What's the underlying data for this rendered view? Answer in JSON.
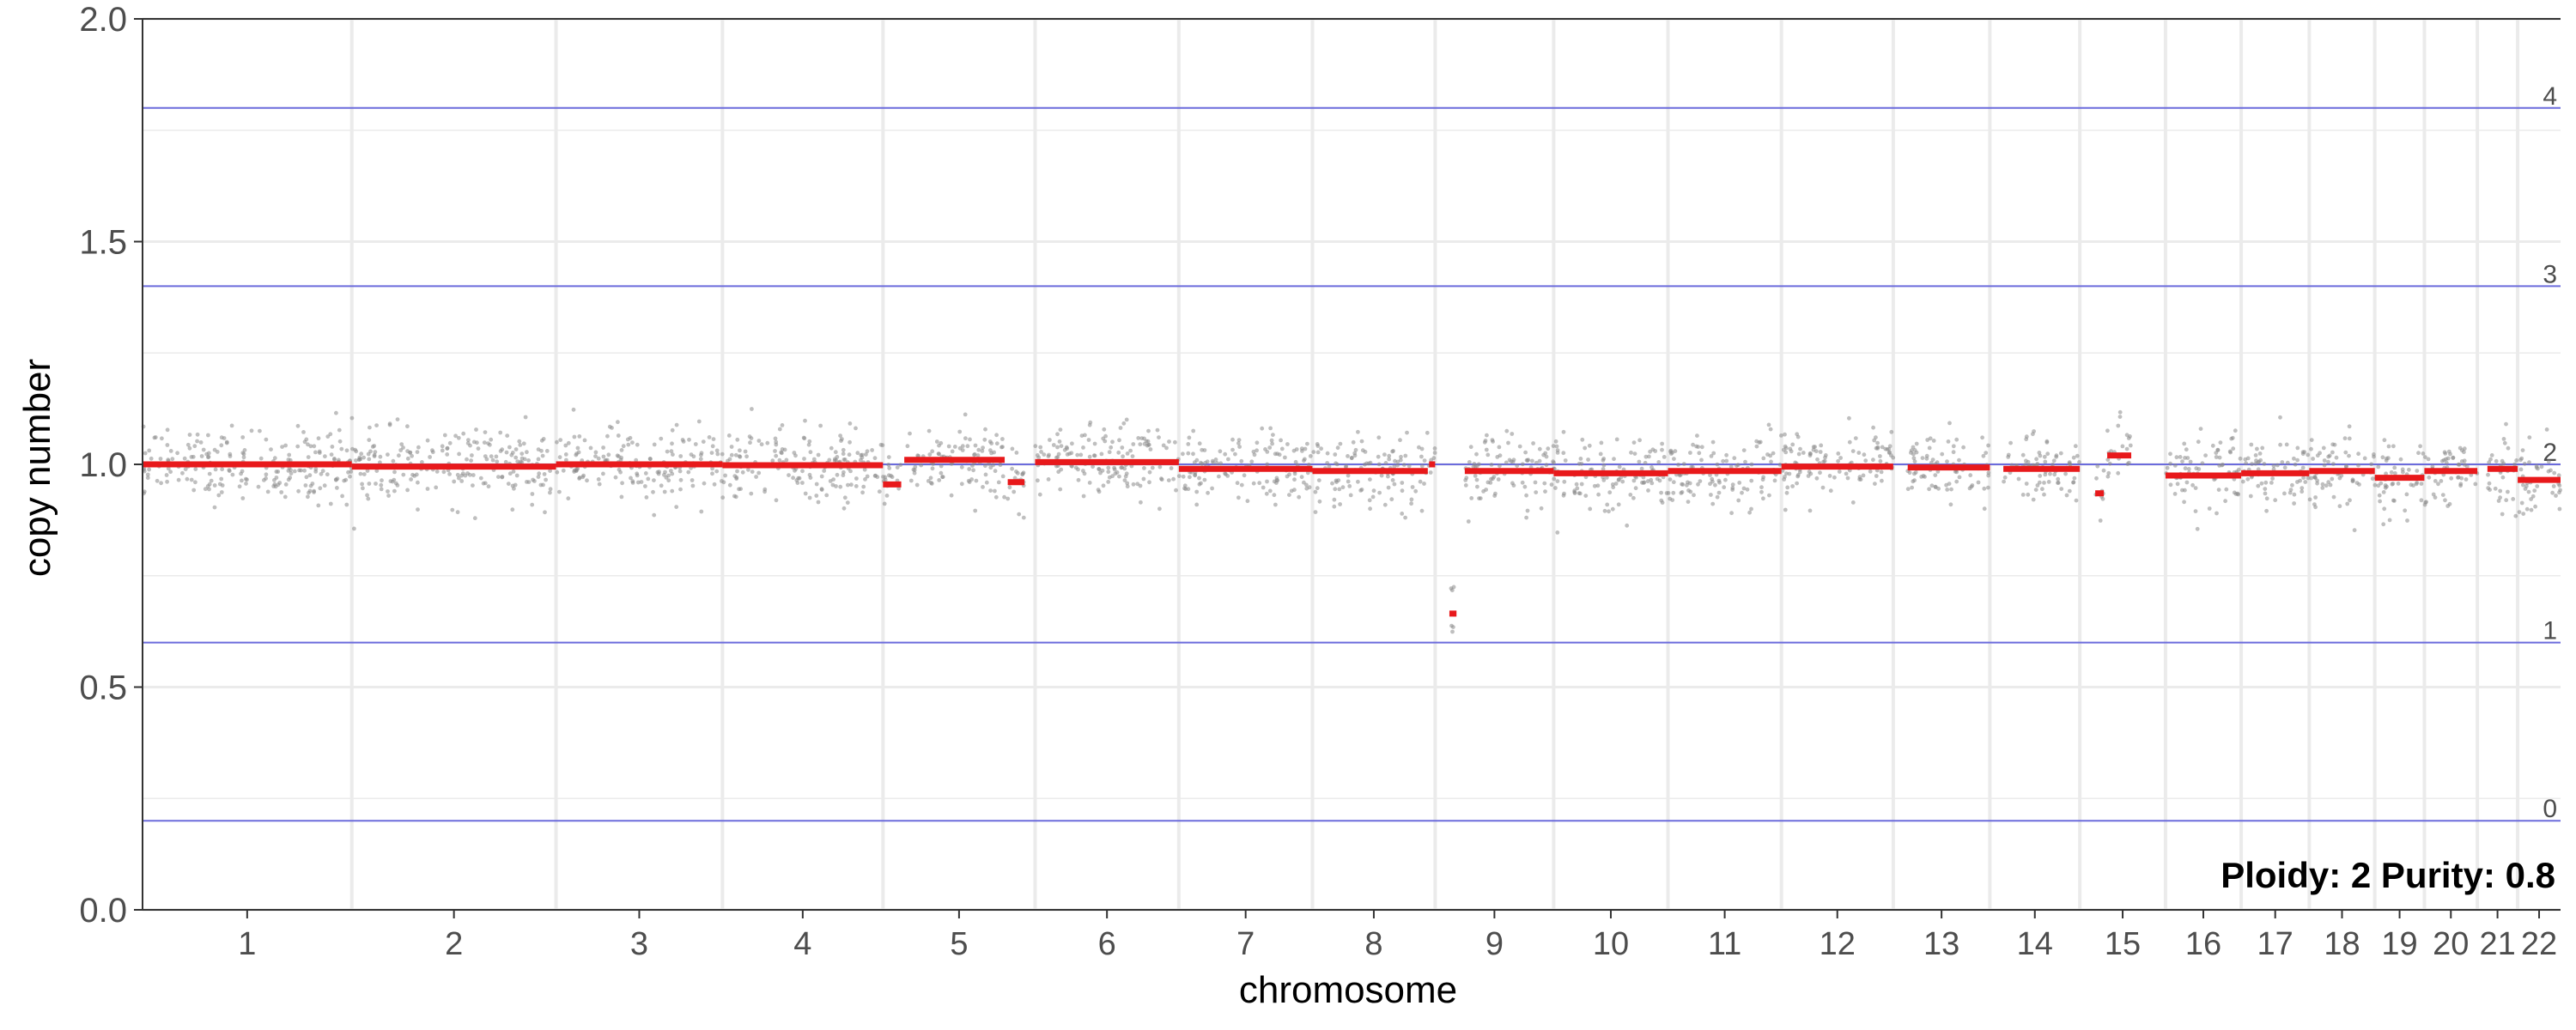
{
  "chart_data": {
    "type": "scatter",
    "title": "",
    "xlabel": "chromosome",
    "ylabel": "copy number",
    "ylim": [
      0.0,
      2.0
    ],
    "y_ticks": [
      "0.0",
      "0.5",
      "1.0",
      "1.5",
      "2.0"
    ],
    "chromosomes": [
      {
        "name": "1",
        "size": 249
      },
      {
        "name": "2",
        "size": 243
      },
      {
        "name": "3",
        "size": 198
      },
      {
        "name": "4",
        "size": 191
      },
      {
        "name": "5",
        "size": 181
      },
      {
        "name": "6",
        "size": 171
      },
      {
        "name": "7",
        "size": 159
      },
      {
        "name": "8",
        "size": 146
      },
      {
        "name": "9",
        "size": 141
      },
      {
        "name": "10",
        "size": 136
      },
      {
        "name": "11",
        "size": 135
      },
      {
        "name": "12",
        "size": 133
      },
      {
        "name": "13",
        "size": 115
      },
      {
        "name": "14",
        "size": 107
      },
      {
        "name": "15",
        "size": 102
      },
      {
        "name": "16",
        "size": 90
      },
      {
        "name": "17",
        "size": 81
      },
      {
        "name": "18",
        "size": 78
      },
      {
        "name": "19",
        "size": 59
      },
      {
        "name": "20",
        "size": 63
      },
      {
        "name": "21",
        "size": 48
      },
      {
        "name": "22",
        "size": 51
      }
    ],
    "copy_number_lines": [
      {
        "label": "0",
        "value": 0.2
      },
      {
        "label": "1",
        "value": 0.6
      },
      {
        "label": "2",
        "value": 1.0
      },
      {
        "label": "3",
        "value": 1.4
      },
      {
        "label": "4",
        "value": 1.8
      }
    ],
    "segments": [
      {
        "chrom": "1",
        "from": 0.0,
        "to": 1.0,
        "value": 1.0
      },
      {
        "chrom": "2",
        "from": 0.0,
        "to": 1.0,
        "value": 0.995
      },
      {
        "chrom": "3",
        "from": 0.0,
        "to": 1.0,
        "value": 1.0
      },
      {
        "chrom": "4",
        "from": 0.0,
        "to": 1.0,
        "value": 0.998
      },
      {
        "chrom": "5",
        "from": 0.0,
        "to": 0.12,
        "value": 0.955
      },
      {
        "chrom": "5",
        "from": 0.14,
        "to": 0.8,
        "value": 1.01
      },
      {
        "chrom": "5",
        "from": 0.82,
        "to": 0.93,
        "value": 0.96
      },
      {
        "chrom": "6",
        "from": 0.0,
        "to": 1.0,
        "value": 1.005
      },
      {
        "chrom": "7",
        "from": 0.0,
        "to": 1.0,
        "value": 0.99
      },
      {
        "chrom": "8",
        "from": 0.0,
        "to": 0.94,
        "value": 0.985
      },
      {
        "chrom": "8",
        "from": 0.95,
        "to": 1.0,
        "value": 1.0
      },
      {
        "chrom": "9",
        "from": 0.12,
        "to": 0.18,
        "value": 0.665
      },
      {
        "chrom": "9",
        "from": 0.25,
        "to": 1.0,
        "value": 0.985
      },
      {
        "chrom": "10",
        "from": 0.0,
        "to": 1.0,
        "value": 0.98
      },
      {
        "chrom": "11",
        "from": 0.0,
        "to": 1.0,
        "value": 0.985
      },
      {
        "chrom": "12",
        "from": 0.0,
        "to": 1.0,
        "value": 0.995
      },
      {
        "chrom": "13",
        "from": 0.15,
        "to": 1.0,
        "value": 0.993
      },
      {
        "chrom": "14",
        "from": 0.15,
        "to": 1.0,
        "value": 0.99
      },
      {
        "chrom": "15",
        "from": 0.18,
        "to": 0.28,
        "value": 0.935
      },
      {
        "chrom": "15",
        "from": 0.32,
        "to": 0.6,
        "value": 1.02
      },
      {
        "chrom": "16",
        "from": 0.0,
        "to": 1.0,
        "value": 0.975
      },
      {
        "chrom": "17",
        "from": 0.0,
        "to": 1.0,
        "value": 0.98
      },
      {
        "chrom": "18",
        "from": 0.0,
        "to": 1.0,
        "value": 0.985
      },
      {
        "chrom": "19",
        "from": 0.0,
        "to": 1.0,
        "value": 0.97
      },
      {
        "chrom": "20",
        "from": 0.0,
        "to": 1.0,
        "value": 0.985
      },
      {
        "chrom": "21",
        "from": 0.25,
        "to": 1.0,
        "value": 0.99
      },
      {
        "chrom": "22",
        "from": 0.0,
        "to": 1.0,
        "value": 0.965
      }
    ],
    "scatter_noise_sd": 0.04,
    "annotation": "Ploidy: 2 Purity: 0.8",
    "grid": true,
    "legend": "none",
    "colors": {
      "copy_number_line": "#6b6bdc",
      "segment": "#e8191b",
      "point": "#8a8a8a",
      "grid": "#ebebeb",
      "axis": "#333333"
    }
  }
}
